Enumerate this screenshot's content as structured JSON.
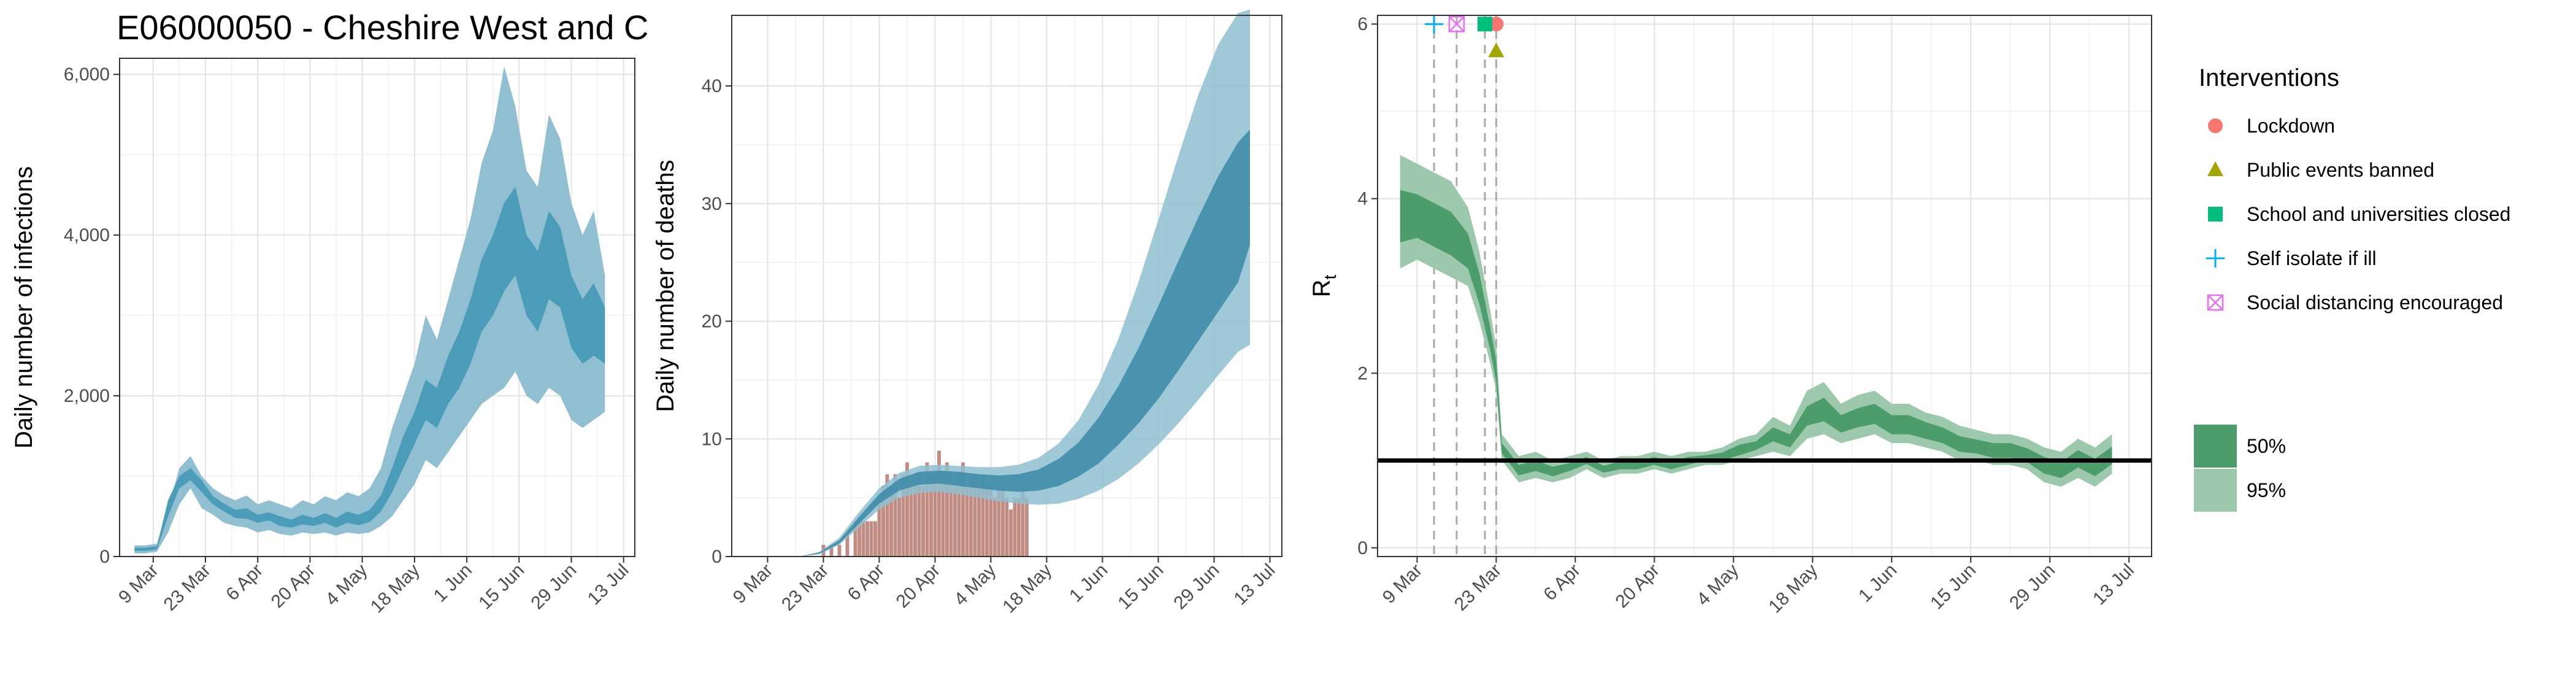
{
  "page": {
    "title": "E06000050 - Cheshire West and C"
  },
  "colors": {
    "infection_band_95": "#8fbfd0",
    "infection_band_50": "#4a9cb8",
    "deaths_band_95": "#8fbfd0",
    "deaths_band_50": "#3a8aa8",
    "deaths_bar": "#b5786f",
    "rt_band_95": "#9cc9ab",
    "rt_band_50": "#4c9c6c",
    "lockdown": "#f8766d",
    "public_events": "#a3a500",
    "school": "#00bf7d",
    "self_isolate": "#00b0f6",
    "social_distancing": "#e76bf3"
  },
  "x_ticks": [
    "9 Mar",
    "23 Mar",
    "6 Apr",
    "20 Apr",
    "4 May",
    "18 May",
    "1 Jun",
    "15 Jun",
    "29 Jun",
    "13 Jul"
  ],
  "chart_data": [
    {
      "type": "area",
      "ylabel": "Daily number of infections",
      "ylim": [
        0,
        6200
      ],
      "yticks": [
        "0",
        "2,000",
        "4,000",
        "6,000"
      ],
      "x": [
        "2020-03-04",
        "2020-03-07",
        "2020-03-10",
        "2020-03-13",
        "2020-03-16",
        "2020-03-19",
        "2020-03-22",
        "2020-03-25",
        "2020-03-28",
        "2020-03-31",
        "2020-04-03",
        "2020-04-06",
        "2020-04-09",
        "2020-04-12",
        "2020-04-15",
        "2020-04-18",
        "2020-04-21",
        "2020-04-24",
        "2020-04-27",
        "2020-04-30",
        "2020-05-03",
        "2020-05-06",
        "2020-05-09",
        "2020-05-12",
        "2020-05-15",
        "2020-05-18",
        "2020-05-21",
        "2020-05-24",
        "2020-05-27",
        "2020-05-30",
        "2020-06-02",
        "2020-06-05",
        "2020-06-08",
        "2020-06-11",
        "2020-06-14",
        "2020-06-17",
        "2020-06-20",
        "2020-06-23",
        "2020-06-26",
        "2020-06-29",
        "2020-07-02",
        "2020-07-05",
        "2020-07-08"
      ],
      "series": [
        {
          "name": "95%",
          "lower": [
            40,
            40,
            60,
            300,
            650,
            850,
            600,
            520,
            420,
            380,
            360,
            300,
            330,
            280,
            260,
            300,
            280,
            300,
            260,
            300,
            280,
            300,
            380,
            500,
            700,
            900,
            1200,
            1100,
            1300,
            1500,
            1700,
            1900,
            2000,
            2100,
            2300,
            2000,
            1900,
            2100,
            2000,
            1700,
            1600,
            1700,
            1800
          ],
          "upper": [
            140,
            140,
            160,
            600,
            1100,
            1250,
            1000,
            850,
            760,
            700,
            760,
            650,
            700,
            650,
            600,
            700,
            650,
            750,
            700,
            800,
            750,
            850,
            1100,
            1600,
            2000,
            2400,
            3000,
            2700,
            3200,
            3700,
            4200,
            4900,
            5300,
            6100,
            5600,
            4800,
            4600,
            5500,
            5200,
            4400,
            4000,
            4300,
            3500
          ]
        },
        {
          "name": "50%",
          "lower": [
            70,
            70,
            90,
            500,
            850,
            950,
            800,
            650,
            560,
            480,
            470,
            420,
            450,
            380,
            360,
            400,
            380,
            420,
            360,
            420,
            390,
            430,
            560,
            800,
            1100,
            1400,
            1700,
            1600,
            1900,
            2100,
            2400,
            2800,
            3000,
            3300,
            3500,
            3000,
            2800,
            3200,
            3100,
            2600,
            2400,
            2500,
            2400
          ],
          "upper": [
            110,
            110,
            130,
            700,
            1000,
            1100,
            950,
            750,
            660,
            580,
            600,
            520,
            550,
            500,
            460,
            520,
            480,
            540,
            480,
            560,
            520,
            580,
            760,
            1100,
            1500,
            1800,
            2200,
            2100,
            2500,
            2800,
            3200,
            3700,
            4000,
            4400,
            4600,
            4000,
            3800,
            4300,
            4100,
            3500,
            3200,
            3400,
            3100
          ]
        }
      ]
    },
    {
      "type": "bar",
      "ylabel": "Daily number of deaths",
      "ylim": [
        0,
        46
      ],
      "yticks": [
        "0",
        "10",
        "20",
        "30",
        "40"
      ],
      "bars": {
        "x": [
          "2020-03-23",
          "2020-03-25",
          "2020-03-27",
          "2020-03-29",
          "2020-03-31",
          "2020-04-01",
          "2020-04-02",
          "2020-04-03",
          "2020-04-04",
          "2020-04-05",
          "2020-04-06",
          "2020-04-07",
          "2020-04-08",
          "2020-04-09",
          "2020-04-10",
          "2020-04-11",
          "2020-04-12",
          "2020-04-13",
          "2020-04-14",
          "2020-04-15",
          "2020-04-16",
          "2020-04-17",
          "2020-04-18",
          "2020-04-19",
          "2020-04-20",
          "2020-04-21",
          "2020-04-22",
          "2020-04-23",
          "2020-04-24",
          "2020-04-25",
          "2020-04-26",
          "2020-04-27",
          "2020-04-28",
          "2020-04-29",
          "2020-04-30",
          "2020-05-01",
          "2020-05-02",
          "2020-05-03",
          "2020-05-04",
          "2020-05-05",
          "2020-05-06",
          "2020-05-07",
          "2020-05-08",
          "2020-05-09",
          "2020-05-10",
          "2020-05-11",
          "2020-05-12",
          "2020-05-13"
        ],
        "values": [
          1,
          1,
          1,
          2,
          3,
          3,
          3,
          3,
          3,
          3,
          5,
          6,
          7,
          6,
          7,
          5,
          7,
          8,
          6,
          7,
          7,
          6,
          8,
          7,
          7,
          9,
          7,
          8,
          7,
          6,
          7,
          8,
          6,
          7,
          7,
          6,
          7,
          6,
          6,
          5,
          6,
          6,
          5,
          4,
          5,
          5,
          6,
          5
        ]
      },
      "x": [
        "2020-03-17",
        "2020-03-22",
        "2020-03-27",
        "2020-04-01",
        "2020-04-06",
        "2020-04-11",
        "2020-04-16",
        "2020-04-21",
        "2020-04-26",
        "2020-05-01",
        "2020-05-06",
        "2020-05-11",
        "2020-05-16",
        "2020-05-21",
        "2020-05-26",
        "2020-05-31",
        "2020-06-05",
        "2020-06-10",
        "2020-06-15",
        "2020-06-20",
        "2020-06-25",
        "2020-06-30",
        "2020-07-05",
        "2020-07-08"
      ],
      "series": [
        {
          "name": "95%",
          "lower": [
            0,
            0.2,
            1,
            2.5,
            4,
            5,
            5.4,
            5.5,
            5.3,
            5.0,
            4.7,
            4.5,
            4.4,
            4.5,
            4.9,
            5.6,
            6.6,
            7.9,
            9.5,
            11.3,
            13.3,
            15.4,
            17.4,
            18
          ],
          "upper": [
            0,
            0.4,
            1.6,
            3.8,
            5.8,
            7.1,
            7.7,
            7.8,
            7.7,
            7.6,
            7.6,
            7.8,
            8.4,
            9.6,
            11.6,
            14.6,
            18.5,
            23.3,
            28.6,
            34.0,
            39.2,
            43.5,
            46.2,
            46.5
          ]
        },
        {
          "name": "50%",
          "lower": [
            0,
            0.25,
            1.1,
            2.8,
            4.5,
            5.6,
            6.1,
            6.2,
            6.0,
            5.8,
            5.6,
            5.5,
            5.6,
            6.0,
            6.8,
            7.9,
            9.5,
            11.3,
            13.4,
            15.8,
            18.3,
            20.8,
            23.3,
            26.5
          ],
          "upper": [
            0,
            0.35,
            1.4,
            3.4,
            5.3,
            6.6,
            7.2,
            7.3,
            7.2,
            7.0,
            6.9,
            7.0,
            7.4,
            8.3,
            9.7,
            11.8,
            14.5,
            17.7,
            21.3,
            25.1,
            28.8,
            32.3,
            35.2,
            36.3
          ]
        }
      ]
    },
    {
      "type": "area",
      "ylabel": "R",
      "ylabel_sub": "t",
      "ylim": [
        -0.1,
        6.1
      ],
      "yticks": [
        "0",
        "2",
        "4",
        "6"
      ],
      "reference_line": 1,
      "x": [
        "2020-03-06",
        "2020-03-09",
        "2020-03-12",
        "2020-03-15",
        "2020-03-18",
        "2020-03-20",
        "2020-03-22",
        "2020-03-23",
        "2020-03-24",
        "2020-03-27",
        "2020-03-30",
        "2020-04-02",
        "2020-04-05",
        "2020-04-08",
        "2020-04-11",
        "2020-04-14",
        "2020-04-17",
        "2020-04-20",
        "2020-04-23",
        "2020-04-26",
        "2020-04-29",
        "2020-05-02",
        "2020-05-05",
        "2020-05-08",
        "2020-05-11",
        "2020-05-14",
        "2020-05-17",
        "2020-05-20",
        "2020-05-23",
        "2020-05-26",
        "2020-05-29",
        "2020-06-01",
        "2020-06-04",
        "2020-06-07",
        "2020-06-10",
        "2020-06-13",
        "2020-06-16",
        "2020-06-19",
        "2020-06-22",
        "2020-06-25",
        "2020-06-28",
        "2020-07-01",
        "2020-07-04",
        "2020-07-07",
        "2020-07-10"
      ],
      "series": [
        {
          "name": "95%",
          "lower": [
            3.2,
            3.3,
            3.2,
            3.1,
            3.0,
            2.6,
            2.1,
            1.8,
            1.0,
            0.75,
            0.8,
            0.75,
            0.8,
            0.9,
            0.8,
            0.85,
            0.85,
            0.9,
            0.85,
            0.9,
            0.95,
            0.95,
            1.0,
            1.05,
            1.1,
            1.05,
            1.25,
            1.3,
            1.2,
            1.25,
            1.3,
            1.2,
            1.2,
            1.15,
            1.1,
            1.0,
            1.0,
            0.95,
            0.95,
            0.9,
            0.75,
            0.7,
            0.8,
            0.7,
            0.85
          ],
          "upper": [
            4.5,
            4.4,
            4.3,
            4.2,
            3.9,
            3.4,
            2.7,
            2.3,
            1.3,
            1.05,
            1.1,
            1.0,
            1.05,
            1.1,
            1.0,
            1.05,
            1.05,
            1.1,
            1.05,
            1.1,
            1.1,
            1.15,
            1.25,
            1.3,
            1.5,
            1.4,
            1.8,
            1.9,
            1.65,
            1.75,
            1.8,
            1.65,
            1.65,
            1.55,
            1.5,
            1.4,
            1.35,
            1.3,
            1.3,
            1.25,
            1.15,
            1.1,
            1.25,
            1.15,
            1.3
          ]
        },
        {
          "name": "50%",
          "lower": [
            3.5,
            3.55,
            3.45,
            3.35,
            3.2,
            2.8,
            2.25,
            1.9,
            1.08,
            0.83,
            0.88,
            0.82,
            0.88,
            0.96,
            0.86,
            0.9,
            0.9,
            0.95,
            0.9,
            0.95,
            1.0,
            1.0,
            1.06,
            1.12,
            1.22,
            1.15,
            1.4,
            1.45,
            1.32,
            1.38,
            1.42,
            1.3,
            1.3,
            1.25,
            1.2,
            1.1,
            1.08,
            1.03,
            1.03,
            0.98,
            0.85,
            0.8,
            0.92,
            0.82,
            0.96
          ],
          "upper": [
            4.1,
            4.05,
            3.95,
            3.85,
            3.6,
            3.15,
            2.5,
            2.15,
            1.2,
            0.95,
            1.0,
            0.93,
            0.97,
            1.04,
            0.94,
            0.99,
            0.99,
            1.04,
            0.99,
            1.04,
            1.06,
            1.09,
            1.18,
            1.22,
            1.38,
            1.3,
            1.62,
            1.72,
            1.52,
            1.6,
            1.65,
            1.52,
            1.52,
            1.44,
            1.38,
            1.28,
            1.24,
            1.2,
            1.2,
            1.14,
            1.04,
            0.98,
            1.12,
            1.02,
            1.16
          ]
        }
      ],
      "interventions": [
        {
          "name": "Lockdown",
          "date": "2020-03-23",
          "marker": "circle",
          "color": "#f8766d"
        },
        {
          "name": "Public events banned",
          "date": "2020-03-23",
          "marker": "triangle",
          "color": "#a3a500"
        },
        {
          "name": "School and universities closed",
          "date": "2020-03-21",
          "marker": "square",
          "color": "#00bf7d"
        },
        {
          "name": "Self isolate if ill",
          "date": "2020-03-12",
          "marker": "plus",
          "color": "#00b0f6"
        },
        {
          "name": "Social distancing encouraged",
          "date": "2020-03-16",
          "marker": "boxx",
          "color": "#e76bf3"
        }
      ]
    }
  ],
  "legend": {
    "title": "Interventions",
    "items": [
      "Lockdown",
      "Public events banned",
      "School and universities closed",
      "Self isolate if ill",
      "Social distancing encouraged"
    ],
    "bands": [
      "50%",
      "95%"
    ]
  }
}
